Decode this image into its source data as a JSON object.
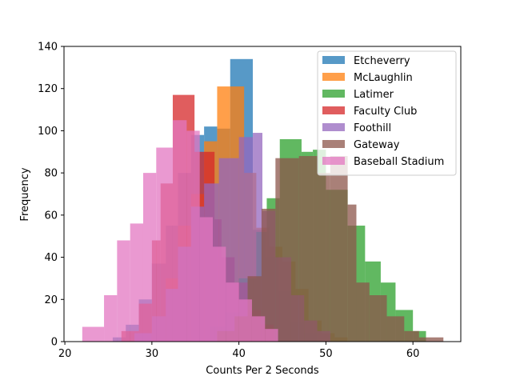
{
  "chart_data": {
    "type": "histogram",
    "xlabel": "Counts Per 2 Seconds",
    "ylabel": "Frequency",
    "xlim": [
      19.9,
      65.5
    ],
    "ylim": [
      0,
      140
    ],
    "xticks": [
      20,
      30,
      40,
      50,
      60
    ],
    "yticks": [
      0,
      20,
      40,
      60,
      80,
      100,
      120,
      140
    ],
    "grid": false,
    "legend_position": "top-right",
    "series": [
      {
        "name": "Etcheverry",
        "color": "#1f77b4",
        "bins": [
          [
            25.5,
            27,
            2
          ],
          [
            27,
            28.5,
            8
          ],
          [
            28.5,
            30,
            20
          ],
          [
            30,
            31.6,
            37
          ],
          [
            31.6,
            33,
            55
          ],
          [
            33,
            34.5,
            80
          ],
          [
            34.5,
            36,
            98
          ],
          [
            36,
            37.5,
            102
          ],
          [
            37.5,
            39,
            101
          ],
          [
            39,
            41.6,
            134
          ],
          [
            41.6,
            43,
            53
          ],
          [
            43,
            44.5,
            40
          ],
          [
            44.5,
            46,
            24
          ],
          [
            46,
            47.5,
            9
          ],
          [
            47.5,
            49,
            4
          ]
        ]
      },
      {
        "name": "McLaughlin",
        "color": "#ff7f0e",
        "bins": [
          [
            30,
            31.6,
            12
          ],
          [
            31.6,
            33,
            30
          ],
          [
            33,
            34.5,
            55
          ],
          [
            34.5,
            36,
            70
          ],
          [
            36,
            37.5,
            95
          ],
          [
            37.5,
            39,
            121
          ],
          [
            39,
            40.6,
            121
          ],
          [
            40.6,
            42,
            80
          ],
          [
            42,
            43.5,
            54
          ],
          [
            43.5,
            45,
            45
          ],
          [
            45,
            46.5,
            38
          ],
          [
            46.5,
            48,
            25
          ],
          [
            48,
            49.5,
            10
          ],
          [
            49.5,
            51,
            4
          ],
          [
            51,
            52.5,
            2
          ]
        ]
      },
      {
        "name": "Latimer",
        "color": "#2ca02c",
        "bins": [
          [
            36.7,
            38.5,
            7
          ],
          [
            38.5,
            40,
            14
          ],
          [
            40,
            42,
            30
          ],
          [
            42,
            43.2,
            52
          ],
          [
            43.2,
            44.7,
            68
          ],
          [
            44.7,
            47.2,
            96
          ],
          [
            47.2,
            48.5,
            90
          ],
          [
            48.5,
            50,
            91
          ],
          [
            50,
            52.5,
            72
          ],
          [
            52.5,
            54.5,
            55
          ],
          [
            54.5,
            56.3,
            38
          ],
          [
            56.3,
            58,
            28
          ],
          [
            58,
            60,
            15
          ],
          [
            60,
            61.5,
            5
          ]
        ]
      },
      {
        "name": "Faculty Club",
        "color": "#d62728",
        "bins": [
          [
            26.5,
            28.5,
            5
          ],
          [
            28.5,
            30,
            18
          ],
          [
            30,
            31,
            48
          ],
          [
            31,
            32.4,
            75
          ],
          [
            32.4,
            34.9,
            117
          ],
          [
            34.9,
            37.2,
            90
          ],
          [
            37.2,
            38,
            58
          ],
          [
            38,
            39.5,
            40
          ],
          [
            39.5,
            41,
            28
          ],
          [
            41,
            42.5,
            15
          ],
          [
            42.5,
            44,
            8
          ]
        ]
      },
      {
        "name": "Foothill",
        "color": "#9467bd",
        "bins": [
          [
            28,
            30,
            4
          ],
          [
            30,
            31.6,
            12
          ],
          [
            31.6,
            33,
            25
          ],
          [
            33,
            34.5,
            45
          ],
          [
            34.5,
            36,
            64
          ],
          [
            36,
            37.7,
            75
          ],
          [
            37.7,
            40,
            87
          ],
          [
            40,
            41.6,
            97
          ],
          [
            41.6,
            42.7,
            99
          ],
          [
            42.7,
            44.2,
            62
          ],
          [
            44.2,
            46,
            40
          ],
          [
            46,
            47.5,
            22
          ],
          [
            47.5,
            49,
            10
          ],
          [
            49,
            50.5,
            5
          ]
        ]
      },
      {
        "name": "Gateway",
        "color": "#8c564b",
        "bins": [
          [
            37.5,
            39.5,
            5
          ],
          [
            39.5,
            41,
            12
          ],
          [
            41,
            42.6,
            31
          ],
          [
            42.6,
            44.2,
            63
          ],
          [
            44.2,
            46.9,
            87
          ],
          [
            46.9,
            49,
            88
          ],
          [
            49,
            50.5,
            80
          ],
          [
            50.5,
            52.5,
            88
          ],
          [
            52.5,
            53.5,
            65
          ],
          [
            53.5,
            55,
            28
          ],
          [
            55,
            57,
            22
          ],
          [
            57,
            59,
            12
          ],
          [
            59,
            60.7,
            5
          ],
          [
            60.7,
            63.5,
            2
          ]
        ]
      },
      {
        "name": "Baseball Stadium",
        "color": "#e377c2",
        "bins": [
          [
            22,
            24.5,
            7
          ],
          [
            24.5,
            26,
            22
          ],
          [
            26,
            27.5,
            48
          ],
          [
            27.5,
            29,
            56
          ],
          [
            29,
            30.5,
            80
          ],
          [
            30.5,
            32.4,
            92
          ],
          [
            32.4,
            34,
            105
          ],
          [
            34,
            35.5,
            100
          ],
          [
            35.5,
            37,
            59
          ],
          [
            37,
            38.5,
            45
          ],
          [
            38.5,
            40,
            28
          ],
          [
            40,
            41.5,
            20
          ],
          [
            41.5,
            43,
            12
          ],
          [
            43,
            44.5,
            6
          ]
        ]
      }
    ]
  }
}
